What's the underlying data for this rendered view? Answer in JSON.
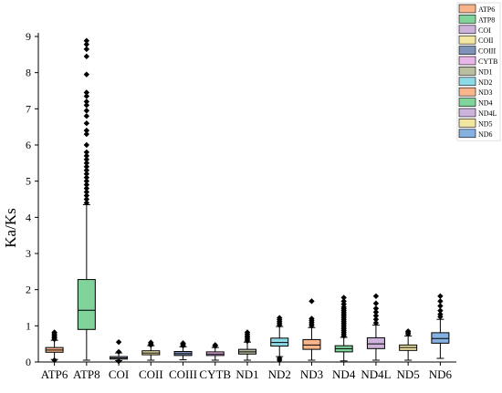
{
  "chart_data": {
    "type": "box",
    "title": "",
    "xlabel": "",
    "ylabel": "Ka/Ks",
    "ylim": [
      0,
      9
    ],
    "yticks": [
      0,
      1,
      2,
      3,
      4,
      5,
      6,
      7,
      8,
      9
    ],
    "grid": false,
    "legend_position": "top-right",
    "categories": [
      "ATP6",
      "ATP8",
      "COI",
      "COII",
      "COIII",
      "CYTB",
      "ND1",
      "ND2",
      "ND3",
      "ND4",
      "ND4L",
      "ND5",
      "ND6"
    ],
    "series": [
      {
        "name": "ATP6",
        "color": "#f8b48a",
        "whisker_low": 0.07,
        "q1": 0.27,
        "median": 0.33,
        "q3": 0.4,
        "whisker_high": 0.6,
        "outliers": [
          0.05,
          0.63,
          0.67,
          0.7,
          0.74,
          0.78,
          0.82
        ]
      },
      {
        "name": "ATP8",
        "color": "#7fd39b",
        "whisker_low": 0.05,
        "q1": 0.9,
        "median": 1.43,
        "q3": 2.28,
        "whisker_high": 4.35,
        "outliers": [
          4.4,
          4.5,
          4.6,
          4.7,
          4.8,
          4.9,
          5.0,
          5.1,
          5.2,
          5.3,
          5.4,
          5.5,
          5.6,
          5.7,
          5.8,
          6.0,
          6.3,
          6.4,
          6.6,
          6.8,
          6.95,
          7.1,
          7.2,
          7.35,
          7.45,
          7.95,
          8.45,
          8.65,
          8.78,
          8.88
        ]
      },
      {
        "name": "COI",
        "color": "#cdb3dc",
        "whisker_low": 0.04,
        "q1": 0.08,
        "median": 0.11,
        "q3": 0.15,
        "whisker_high": 0.25,
        "outliers": [
          0.02,
          0.28,
          0.55
        ]
      },
      {
        "name": "COII",
        "color": "#f2e6a3",
        "whisker_low": 0.05,
        "q1": 0.2,
        "median": 0.25,
        "q3": 0.31,
        "whisker_high": 0.45,
        "outliers": [
          0.47,
          0.5,
          0.54
        ]
      },
      {
        "name": "COIII",
        "color": "#7f93b8",
        "whisker_low": 0.06,
        "q1": 0.18,
        "median": 0.23,
        "q3": 0.29,
        "whisker_high": 0.42,
        "outliers": [
          0.45,
          0.49,
          0.52
        ]
      },
      {
        "name": "CYTB",
        "color": "#e9b6e8",
        "whisker_low": 0.05,
        "q1": 0.18,
        "median": 0.22,
        "q3": 0.28,
        "whisker_high": 0.4,
        "outliers": [
          0.44,
          0.47
        ]
      },
      {
        "name": "ND1",
        "color": "#b8bea0",
        "whisker_low": 0.05,
        "q1": 0.22,
        "median": 0.28,
        "q3": 0.35,
        "whisker_high": 0.55,
        "outliers": [
          0.58,
          0.63,
          0.68,
          0.72,
          0.77,
          0.82
        ]
      },
      {
        "name": "ND2",
        "color": "#8ed9e6",
        "whisker_low": 0.15,
        "q1": 0.44,
        "median": 0.54,
        "q3": 0.66,
        "whisker_high": 0.98,
        "outliers": [
          0.05,
          0.1,
          1.02,
          1.07,
          1.12,
          1.17,
          1.22
        ]
      },
      {
        "name": "ND3",
        "color": "#f8b48a",
        "whisker_low": 0.05,
        "q1": 0.35,
        "median": 0.47,
        "q3": 0.62,
        "whisker_high": 0.95,
        "outliers": [
          1.0,
          1.05,
          1.1,
          1.15,
          1.2,
          1.68
        ]
      },
      {
        "name": "ND4",
        "color": "#7fd39b",
        "whisker_low": 0.03,
        "q1": 0.28,
        "median": 0.37,
        "q3": 0.45,
        "whisker_high": 0.68,
        "outliers": [
          0.72,
          0.77,
          0.82,
          0.87,
          0.92,
          0.97,
          1.02,
          1.07,
          1.12,
          1.17,
          1.22,
          1.27,
          1.32,
          1.37,
          1.42,
          1.47,
          1.52,
          1.6,
          1.68,
          1.78
        ]
      },
      {
        "name": "ND4L",
        "color": "#cdb3dc",
        "whisker_low": 0.05,
        "q1": 0.37,
        "median": 0.5,
        "q3": 0.67,
        "whisker_high": 1.02,
        "outliers": [
          1.08,
          1.18,
          1.28,
          1.38,
          1.48,
          1.62,
          1.82
        ]
      },
      {
        "name": "ND5",
        "color": "#f2e6a3",
        "whisker_low": 0.05,
        "q1": 0.32,
        "median": 0.4,
        "q3": 0.47,
        "whisker_high": 0.72,
        "outliers": [
          0.77,
          0.81,
          0.85
        ]
      },
      {
        "name": "ND6",
        "color": "#85b1e0",
        "whisker_low": 0.1,
        "q1": 0.52,
        "median": 0.65,
        "q3": 0.81,
        "whisker_high": 1.18,
        "outliers": [
          1.25,
          1.32,
          1.42,
          1.55,
          1.68,
          1.82
        ]
      }
    ]
  }
}
